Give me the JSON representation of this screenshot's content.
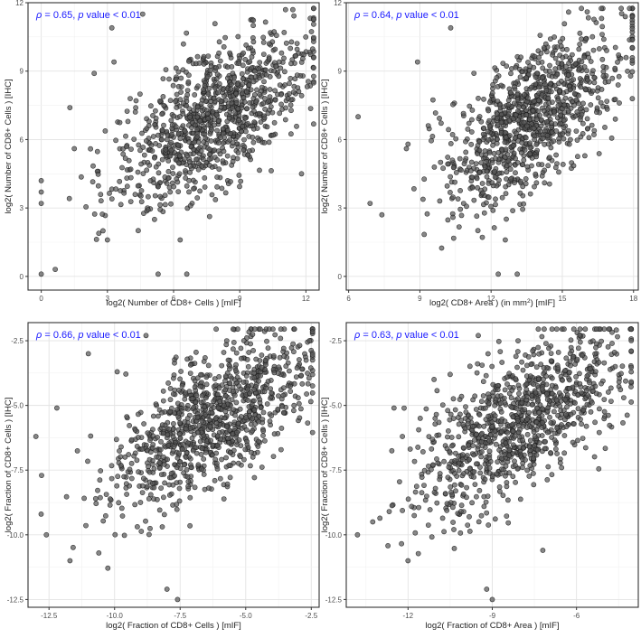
{
  "chart_data": [
    {
      "type": "scatter",
      "annotation": "ρ = 0.65, p value < 0.01",
      "xlabel": "log2( Number of CD8+ Cells )  [mIF]",
      "ylabel": "log2( Number of CD8+ Cells )  [IHC]",
      "xlim": [
        -0.6,
        12.6
      ],
      "ylim": [
        -0.6,
        12.0
      ],
      "xticks": [
        0,
        3,
        6,
        9,
        12
      ],
      "xtick_labels": [
        "0",
        "3",
        "6",
        "9",
        "12"
      ],
      "yticks": [
        0,
        3,
        6,
        9,
        12
      ],
      "ytick_labels": [
        "0",
        "3",
        "6",
        "9",
        "12"
      ],
      "grid": true,
      "point_color": "#595959",
      "correlation": 0.65,
      "x_center": 7.8,
      "y_center": 7.0,
      "x_sd": 2.2,
      "y_sd": 1.9,
      "n_points": 1000,
      "points": [
        [
          0,
          0.1
        ],
        [
          0,
          4.2
        ],
        [
          0,
          3.7
        ],
        [
          0,
          3.2
        ],
        [
          1.5,
          5.6
        ],
        [
          1.3,
          7.4
        ],
        [
          2.4,
          8.9
        ],
        [
          3.3,
          9.4
        ],
        [
          2.8,
          2.0
        ],
        [
          3.0,
          1.6
        ],
        [
          3.2,
          10.9
        ],
        [
          4.6,
          11.5
        ],
        [
          5.3,
          0.1
        ],
        [
          6.6,
          0.1
        ],
        [
          6.3,
          1.6
        ],
        [
          4.3,
          7.7
        ],
        [
          11.8,
          4.5
        ]
      ]
    },
    {
      "type": "scatter",
      "annotation": "ρ = 0.64, p value < 0.01",
      "xlabel": "log2( CD8+ Area ) (in mm²)  [mIF]",
      "ylabel": "log2( Number of CD8+ Cells )  [IHC]",
      "xlim": [
        5.9,
        18.2
      ],
      "ylim": [
        -0.6,
        12.0
      ],
      "xticks": [
        6,
        9,
        12,
        15,
        18
      ],
      "xtick_labels": [
        "6",
        "9",
        "12",
        "15",
        "18"
      ],
      "yticks": [
        0,
        3,
        6,
        9,
        12
      ],
      "ytick_labels": [
        "0",
        "3",
        "6",
        "9",
        "12"
      ],
      "grid": true,
      "point_color": "#595959",
      "correlation": 0.64,
      "x_center": 13.8,
      "y_center": 7.0,
      "x_sd": 1.9,
      "y_sd": 1.9,
      "n_points": 1000,
      "points": [
        [
          6.4,
          7.0
        ],
        [
          6.9,
          3.2
        ],
        [
          8.9,
          9.4
        ],
        [
          10.3,
          10.9
        ],
        [
          12.3,
          0.1
        ],
        [
          12.6,
          1.6
        ],
        [
          13.1,
          0.1
        ],
        [
          8.5,
          5.8
        ],
        [
          7.4,
          2.7
        ]
      ]
    },
    {
      "type": "scatter",
      "annotation": "ρ = 0.66, p value < 0.01",
      "xlabel": "log2( Fraction of CD8+ Cells )  [mIF]",
      "ylabel": "log2( Fraction of CD8+ Cells )  [IHC]",
      "xlim": [
        -13.3,
        -2.2
      ],
      "ylim": [
        -12.8,
        -1.8
      ],
      "xticks": [
        -12.5,
        -10.0,
        -7.5,
        -5.0,
        -2.5
      ],
      "xtick_labels": [
        "-12.5",
        "-10.0",
        "-7.5",
        "-5.0",
        "-2.5"
      ],
      "yticks": [
        -12.5,
        -10.0,
        -7.5,
        -5.0,
        -2.5
      ],
      "ytick_labels": [
        "-12.5",
        "-10.0",
        "-7.5",
        "-5.0",
        "-2.5"
      ],
      "grid": true,
      "point_color": "#595959",
      "correlation": 0.66,
      "x_center": -6.3,
      "y_center": -5.6,
      "x_sd": 1.9,
      "y_sd": 1.7,
      "n_points": 1000,
      "points": [
        [
          -13.0,
          -6.2
        ],
        [
          -12.8,
          -9.2
        ],
        [
          -12.6,
          -10.0
        ],
        [
          -12.2,
          -5.1
        ],
        [
          -11.7,
          -11.0
        ],
        [
          -10.6,
          -10.7
        ],
        [
          -8.8,
          -2.3
        ],
        [
          -8.0,
          -12.1
        ],
        [
          -7.6,
          -12.5
        ],
        [
          -11.0,
          -3.0
        ],
        [
          -9.9,
          -3.7
        ]
      ]
    },
    {
      "type": "scatter",
      "annotation": "ρ = 0.63, p value < 0.01",
      "xlabel": "log2( Fraction of CD8+ Area )  [mIF]",
      "ylabel": "log2( Fraction of CD8+ Cells )  [IHC]",
      "xlim": [
        -14.2,
        -3.8
      ],
      "ylim": [
        -12.8,
        -1.8
      ],
      "xticks": [
        -12,
        -9,
        -6
      ],
      "xtick_labels": [
        "-12",
        "-9",
        "-6"
      ],
      "yticks": [
        -12.5,
        -10.0,
        -7.5,
        -5.0,
        -2.5
      ],
      "ytick_labels": [
        "-12.5",
        "-10.0",
        "-7.5",
        "-5.0",
        "-2.5"
      ],
      "grid": true,
      "point_color": "#595959",
      "correlation": 0.63,
      "x_center": -8.0,
      "y_center": -5.6,
      "x_sd": 1.8,
      "y_sd": 1.7,
      "n_points": 1000,
      "points": [
        [
          -13.8,
          -10.0
        ],
        [
          -12.5,
          -5.1
        ],
        [
          -12.0,
          -11.0
        ],
        [
          -9.2,
          -12.1
        ],
        [
          -9.0,
          -12.5
        ],
        [
          -9.5,
          -2.3
        ],
        [
          -7.2,
          -10.6
        ],
        [
          -12.2,
          -6.2
        ]
      ]
    }
  ]
}
